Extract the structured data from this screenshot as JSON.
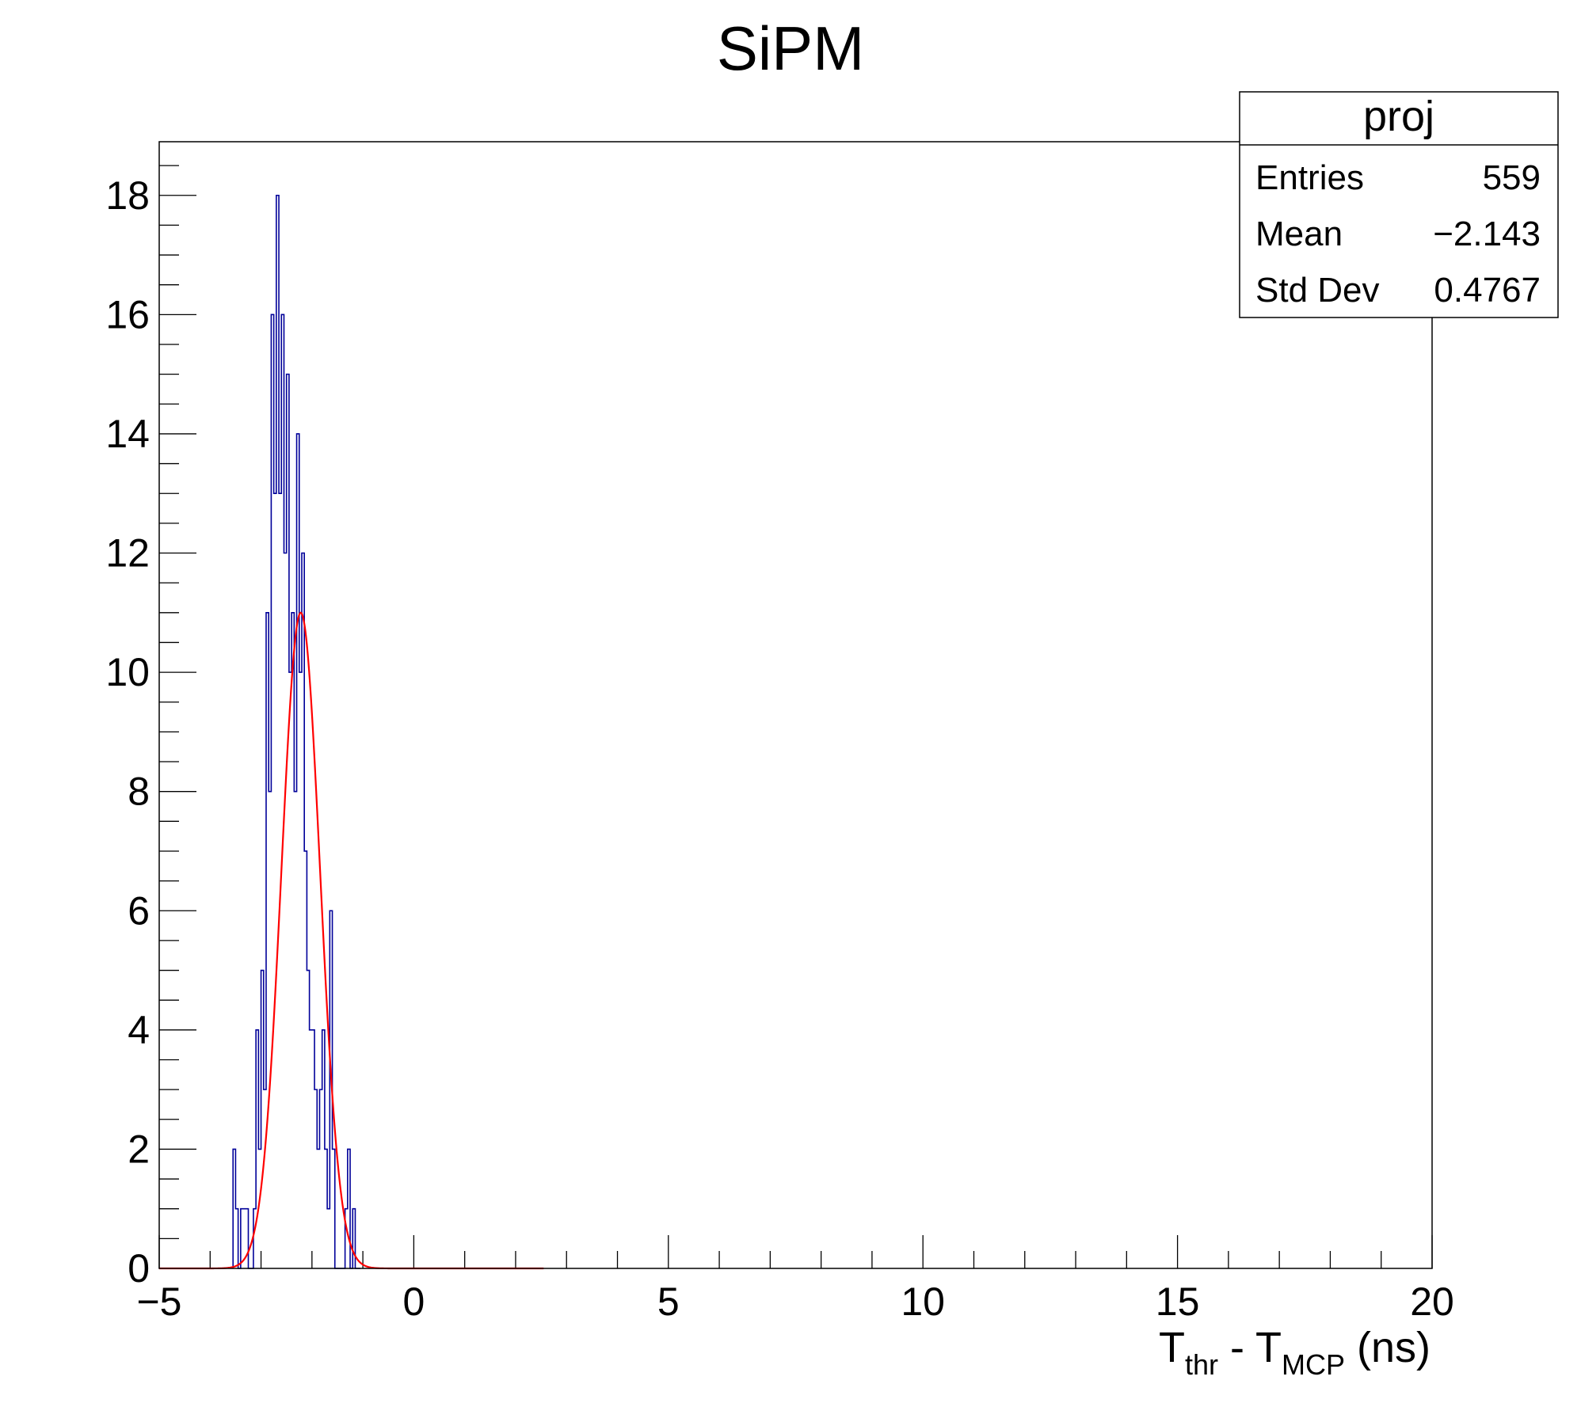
{
  "chart_data": {
    "type": "histogram",
    "title": "SiPM",
    "xlabel": {
      "main1": "T",
      "sub1": "thr",
      "mid": " - T",
      "sub2": "MCP",
      "tail": " (ns)"
    },
    "ylabel": "",
    "xlim": [
      -5,
      20
    ],
    "ylim": [
      0,
      18.9
    ],
    "x_ticks": [
      -5,
      0,
      5,
      10,
      15,
      20
    ],
    "x_tick_labels": [
      "−5",
      "0",
      "5",
      "10",
      "15",
      "20"
    ],
    "y_ticks": [
      0,
      2,
      4,
      6,
      8,
      10,
      12,
      14,
      16,
      18
    ],
    "y_tick_labels": [
      "0",
      "2",
      "4",
      "6",
      "8",
      "10",
      "12",
      "14",
      "16",
      "18"
    ],
    "grid": false,
    "colors": {
      "histogram": "#000099",
      "fit": "#ff0000",
      "frame": "#000000"
    },
    "histogram": {
      "name": "proj",
      "bin_width": 0.05,
      "x_start": -3.55,
      "counts": [
        2,
        1,
        0,
        1,
        1,
        1,
        0,
        0,
        1,
        4,
        2,
        5,
        3,
        11,
        8,
        16,
        13,
        18,
        13,
        16,
        12,
        15,
        10,
        11,
        8,
        14,
        10,
        12,
        7,
        5,
        4,
        4,
        3,
        2,
        3,
        4,
        2,
        1,
        6,
        2,
        0,
        0,
        0,
        0,
        1,
        2,
        0,
        1,
        0,
        0
      ]
    },
    "fit": {
      "function": "gaus",
      "constant": 11.0,
      "mean": -2.22,
      "sigma": 0.38,
      "x_range": [
        -5,
        2.55
      ]
    },
    "stats_box": {
      "name": "proj",
      "rows": [
        {
          "label": "Entries",
          "value": "559"
        },
        {
          "label": "Mean",
          "value": "−2.143"
        },
        {
          "label": "Std Dev",
          "value": "0.4767"
        }
      ]
    }
  }
}
